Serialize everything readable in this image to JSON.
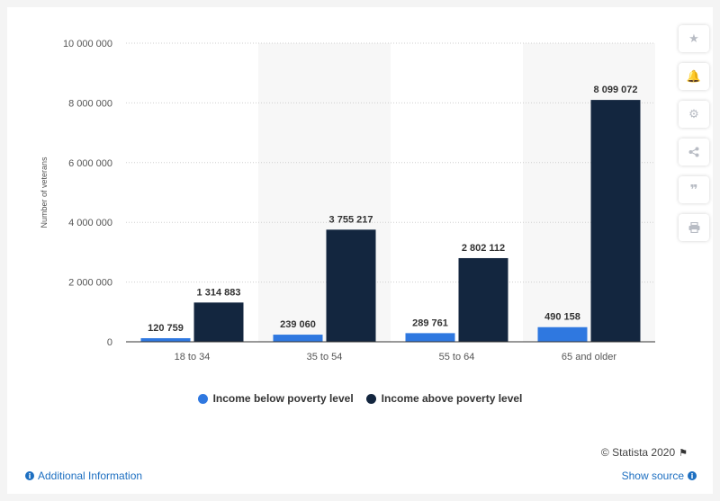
{
  "toolbar": {
    "icons": [
      "star-icon",
      "bell-icon",
      "gear-icon",
      "share-icon",
      "quote-icon",
      "print-icon"
    ]
  },
  "chart_data": {
    "type": "bar",
    "categories": [
      "18 to 34",
      "35 to 54",
      "55 to 64",
      "65 and older"
    ],
    "series": [
      {
        "name": "Income below poverty level",
        "values": [
          120759,
          239060,
          289761,
          490158
        ],
        "color": "#2f78e0"
      },
      {
        "name": "Income above poverty level",
        "values": [
          1314883,
          3755217,
          2802112,
          8099072
        ],
        "color": "#13263f"
      }
    ],
    "value_labels": [
      [
        "120 759",
        "239 060",
        "289 761",
        "490 158"
      ],
      [
        "1 314 883",
        "3 755 217",
        "2 802 112",
        "8 099 072"
      ]
    ],
    "ylabel": "Number of veterans",
    "xlabel": "",
    "ylim": [
      0,
      10000000
    ],
    "yticks": [
      0,
      2000000,
      4000000,
      6000000,
      8000000,
      10000000
    ],
    "ytick_labels": [
      "0",
      "2 000 000",
      "4 000 000",
      "6 000 000",
      "8 000 000",
      "10 000 000"
    ],
    "grid": true,
    "legend_position": "bottom"
  },
  "legend": {
    "items": [
      {
        "label": "Income below poverty level",
        "color": "#2f78e0"
      },
      {
        "label": "Income above poverty level",
        "color": "#13263f"
      }
    ]
  },
  "footer": {
    "credits": "© Statista 2020",
    "additional_info": "Additional Information",
    "show_source": "Show source"
  }
}
